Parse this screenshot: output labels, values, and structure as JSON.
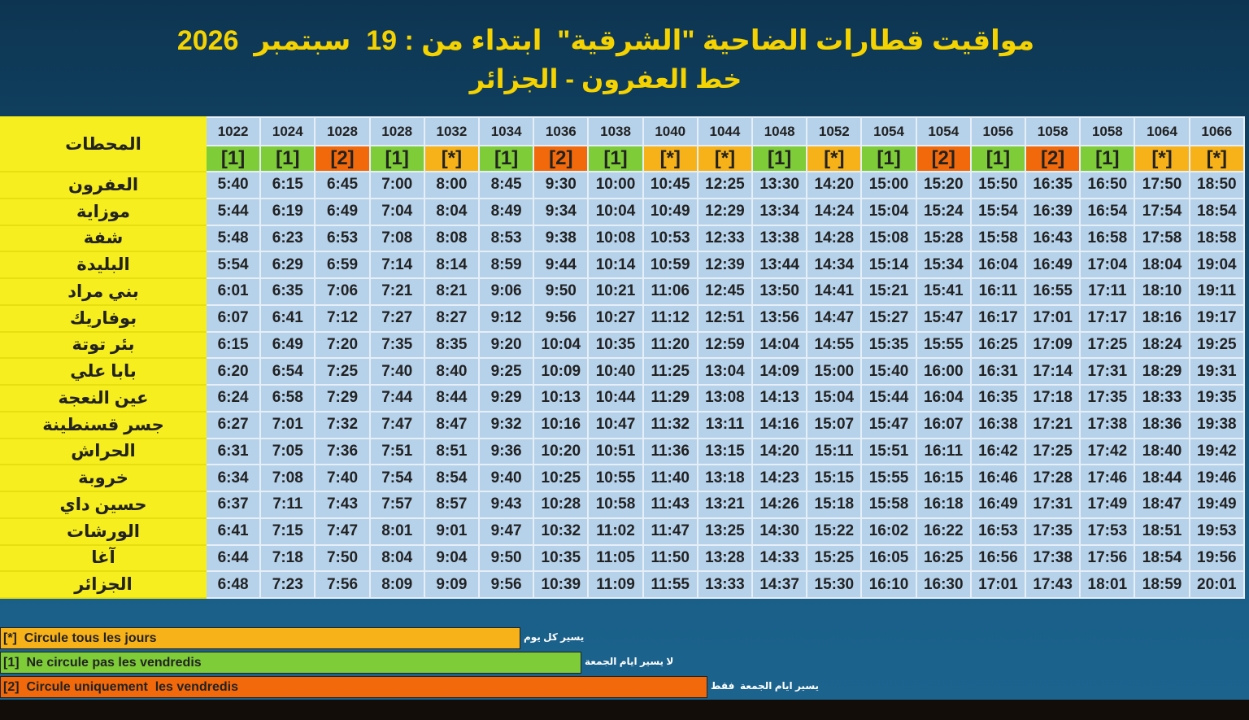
{
  "header": {
    "title": "مواقيت قطارات الضاحية \"الشرقية\"  ابتداء من : 19  سبتمبر  2026",
    "subtitle": "خط العفرون - الجزائر"
  },
  "table": {
    "station_header": "المحطات",
    "trains": [
      "1022",
      "1024",
      "1028",
      "1028",
      "1032",
      "1034",
      "1036",
      "1038",
      "1040",
      "1044",
      "1048",
      "1052",
      "1054",
      "1054",
      "1056",
      "1058",
      "1058",
      "1064",
      "1066"
    ],
    "codes": [
      "[1]",
      "[1]",
      "[2]",
      "[1]",
      "[*]",
      "[1]",
      "[2]",
      "[1]",
      "[*]",
      "[*]",
      "[1]",
      "[*]",
      "[1]",
      "[2]",
      "[1]",
      "[2]",
      "[1]",
      "[*]",
      "[*]"
    ],
    "rows": [
      {
        "station": "العفرون",
        "times": [
          "5:40",
          "6:15",
          "6:45",
          "7:00",
          "8:00",
          "8:45",
          "9:30",
          "10:00",
          "10:45",
          "12:25",
          "13:30",
          "14:20",
          "15:00",
          "15:20",
          "15:50",
          "16:35",
          "16:50",
          "17:50",
          "18:50"
        ]
      },
      {
        "station": "موزاية",
        "times": [
          "5:44",
          "6:19",
          "6:49",
          "7:04",
          "8:04",
          "8:49",
          "9:34",
          "10:04",
          "10:49",
          "12:29",
          "13:34",
          "14:24",
          "15:04",
          "15:24",
          "15:54",
          "16:39",
          "16:54",
          "17:54",
          "18:54"
        ]
      },
      {
        "station": "شفة",
        "times": [
          "5:48",
          "6:23",
          "6:53",
          "7:08",
          "8:08",
          "8:53",
          "9:38",
          "10:08",
          "10:53",
          "12:33",
          "13:38",
          "14:28",
          "15:08",
          "15:28",
          "15:58",
          "16:43",
          "16:58",
          "17:58",
          "18:58"
        ]
      },
      {
        "station": "البليدة",
        "times": [
          "5:54",
          "6:29",
          "6:59",
          "7:14",
          "8:14",
          "8:59",
          "9:44",
          "10:14",
          "10:59",
          "12:39",
          "13:44",
          "14:34",
          "15:14",
          "15:34",
          "16:04",
          "16:49",
          "17:04",
          "18:04",
          "19:04"
        ]
      },
      {
        "station": "بني مراد",
        "times": [
          "6:01",
          "6:35",
          "7:06",
          "7:21",
          "8:21",
          "9:06",
          "9:50",
          "10:21",
          "11:06",
          "12:45",
          "13:50",
          "14:41",
          "15:21",
          "15:41",
          "16:11",
          "16:55",
          "17:11",
          "18:10",
          "19:11"
        ]
      },
      {
        "station": "بوفاريك",
        "times": [
          "6:07",
          "6:41",
          "7:12",
          "7:27",
          "8:27",
          "9:12",
          "9:56",
          "10:27",
          "11:12",
          "12:51",
          "13:56",
          "14:47",
          "15:27",
          "15:47",
          "16:17",
          "17:01",
          "17:17",
          "18:16",
          "19:17"
        ]
      },
      {
        "station": "بئر توتة",
        "times": [
          "6:15",
          "6:49",
          "7:20",
          "7:35",
          "8:35",
          "9:20",
          "10:04",
          "10:35",
          "11:20",
          "12:59",
          "14:04",
          "14:55",
          "15:35",
          "15:55",
          "16:25",
          "17:09",
          "17:25",
          "18:24",
          "19:25"
        ]
      },
      {
        "station": "بابا علي",
        "times": [
          "6:20",
          "6:54",
          "7:25",
          "7:40",
          "8:40",
          "9:25",
          "10:09",
          "10:40",
          "11:25",
          "13:04",
          "14:09",
          "15:00",
          "15:40",
          "16:00",
          "16:31",
          "17:14",
          "17:31",
          "18:29",
          "19:31"
        ]
      },
      {
        "station": "عين النعجة",
        "times": [
          "6:24",
          "6:58",
          "7:29",
          "7:44",
          "8:44",
          "9:29",
          "10:13",
          "10:44",
          "11:29",
          "13:08",
          "14:13",
          "15:04",
          "15:44",
          "16:04",
          "16:35",
          "17:18",
          "17:35",
          "18:33",
          "19:35"
        ]
      },
      {
        "station": "جسر قسنطينة",
        "times": [
          "6:27",
          "7:01",
          "7:32",
          "7:47",
          "8:47",
          "9:32",
          "10:16",
          "10:47",
          "11:32",
          "13:11",
          "14:16",
          "15:07",
          "15:47",
          "16:07",
          "16:38",
          "17:21",
          "17:38",
          "18:36",
          "19:38"
        ]
      },
      {
        "station": "الحراش",
        "times": [
          "6:31",
          "7:05",
          "7:36",
          "7:51",
          "8:51",
          "9:36",
          "10:20",
          "10:51",
          "11:36",
          "13:15",
          "14:20",
          "15:11",
          "15:51",
          "16:11",
          "16:42",
          "17:25",
          "17:42",
          "18:40",
          "19:42"
        ]
      },
      {
        "station": "خروبة",
        "times": [
          "6:34",
          "7:08",
          "7:40",
          "7:54",
          "8:54",
          "9:40",
          "10:25",
          "10:55",
          "11:40",
          "13:18",
          "14:23",
          "15:15",
          "15:55",
          "16:15",
          "16:46",
          "17:28",
          "17:46",
          "18:44",
          "19:46"
        ]
      },
      {
        "station": "حسين داي",
        "times": [
          "6:37",
          "7:11",
          "7:43",
          "7:57",
          "8:57",
          "9:43",
          "10:28",
          "10:58",
          "11:43",
          "13:21",
          "14:26",
          "15:18",
          "15:58",
          "16:18",
          "16:49",
          "17:31",
          "17:49",
          "18:47",
          "19:49"
        ]
      },
      {
        "station": "الورشات",
        "times": [
          "6:41",
          "7:15",
          "7:47",
          "8:01",
          "9:01",
          "9:47",
          "10:32",
          "11:02",
          "11:47",
          "13:25",
          "14:30",
          "15:22",
          "16:02",
          "16:22",
          "16:53",
          "17:35",
          "17:53",
          "18:51",
          "19:53"
        ]
      },
      {
        "station": "آغا",
        "times": [
          "6:44",
          "7:18",
          "7:50",
          "8:04",
          "9:04",
          "9:50",
          "10:35",
          "11:05",
          "11:50",
          "13:28",
          "14:33",
          "15:25",
          "16:05",
          "16:25",
          "16:56",
          "17:38",
          "17:56",
          "18:54",
          "19:56"
        ]
      },
      {
        "station": "الجزائر",
        "times": [
          "6:48",
          "7:23",
          "7:56",
          "8:09",
          "9:09",
          "9:56",
          "10:39",
          "11:09",
          "11:55",
          "13:33",
          "14:37",
          "15:30",
          "16:10",
          "16:30",
          "17:01",
          "17:43",
          "18:01",
          "18:59",
          "20:01"
        ]
      }
    ]
  },
  "legend": [
    {
      "code": "[*]",
      "label": "Circule tous les jours",
      "label_ar": "يسير كل يوم",
      "color": "#f7b219"
    },
    {
      "code": "[1]",
      "label": "Ne circule pas les vendredis",
      "label_ar": "لا يسير ايام الجمعة",
      "color": "#7dcc38"
    },
    {
      "code": "[2]",
      "label": "Circule uniquement  les vendredis",
      "label_ar": "يسير ايام الجمعة  فقط",
      "color": "#f2690c"
    }
  ]
}
